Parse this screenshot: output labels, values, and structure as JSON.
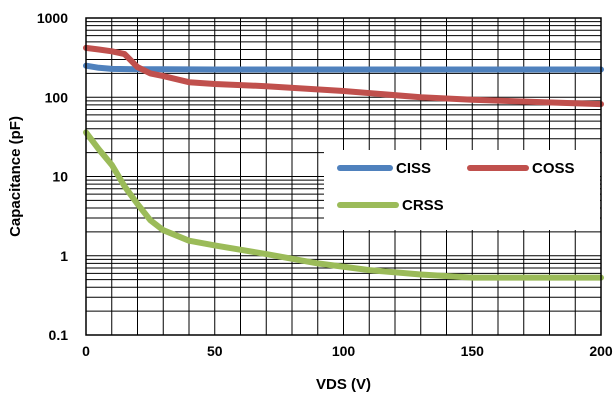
{
  "chart_data": {
    "type": "line",
    "title": "",
    "xlabel": "VDS (V)",
    "ylabel": "Capacitance (pF)",
    "xlim": [
      0,
      200
    ],
    "ylim": [
      0.1,
      1000
    ],
    "y_scale": "log",
    "grid": true,
    "legend_position": "right, inside plot",
    "x_ticks": [
      0,
      50,
      100,
      150,
      200
    ],
    "x_tick_labels": [
      "0",
      "50",
      "100",
      "150",
      "200"
    ],
    "y_ticks": [
      0.1,
      1,
      10,
      100,
      1000
    ],
    "y_tick_labels": [
      "0.1",
      "1",
      "10",
      "100",
      "1000"
    ],
    "series": [
      {
        "name": "CISS",
        "color": "#4f81bd",
        "x": [
          0,
          5,
          10,
          20,
          30,
          50,
          100,
          150,
          200
        ],
        "y": [
          250,
          235,
          228,
          226,
          225,
          224,
          224,
          224,
          224
        ]
      },
      {
        "name": "COSS",
        "color": "#c0504d",
        "x": [
          0,
          5,
          10,
          15,
          20,
          25,
          30,
          40,
          50,
          70,
          100,
          130,
          150,
          175,
          200
        ],
        "y": [
          420,
          400,
          380,
          350,
          240,
          200,
          185,
          155,
          147,
          138,
          120,
          100,
          93,
          87,
          82
        ]
      },
      {
        "name": "CRSS",
        "color": "#9bbb59",
        "x": [
          0,
          5,
          10,
          15,
          20,
          25,
          30,
          40,
          50,
          70,
          90,
          110,
          130,
          150,
          175,
          200
        ],
        "y": [
          36,
          22,
          14,
          7.5,
          4.5,
          2.8,
          2.1,
          1.55,
          1.35,
          1.05,
          0.8,
          0.66,
          0.58,
          0.53,
          0.53,
          0.53
        ]
      }
    ]
  }
}
